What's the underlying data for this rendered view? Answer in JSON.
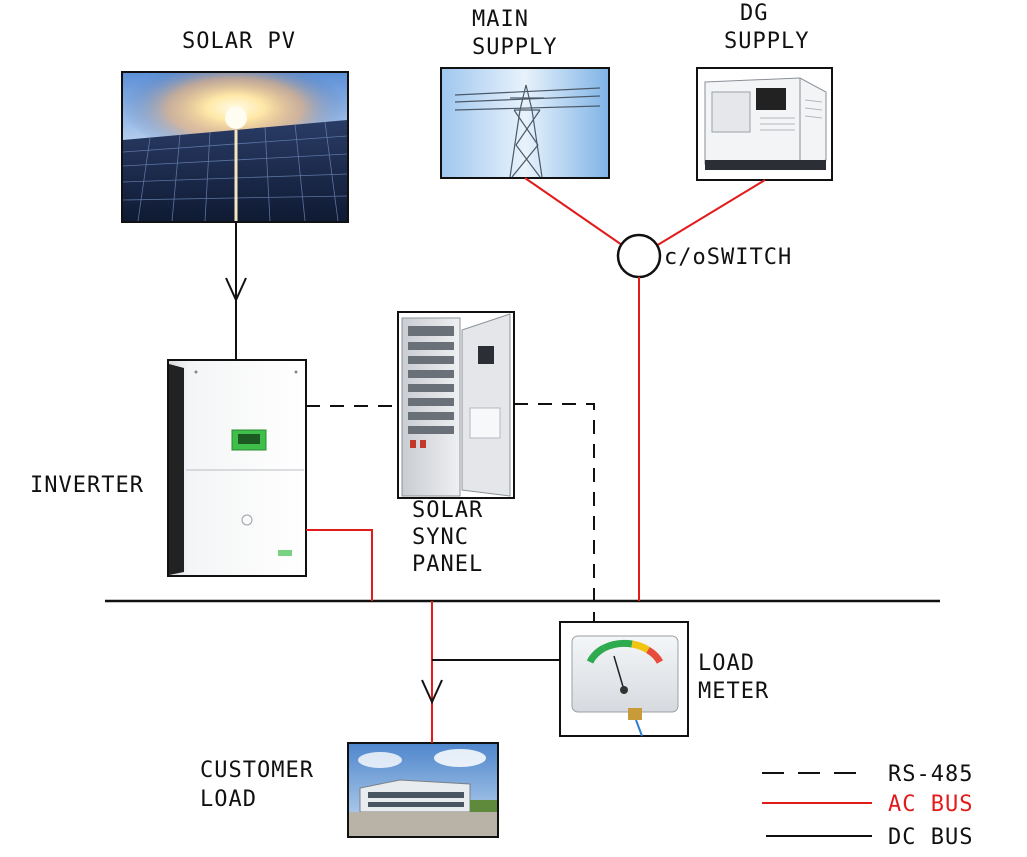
{
  "labels": {
    "solar_pv": "SOLAR PV",
    "main_supply_1": "MAIN",
    "main_supply_2": "SUPPLY",
    "dg_supply_1": "DG",
    "dg_supply_2": "SUPPLY",
    "co_switch": "c/oSWITCH",
    "inverter": "INVERTER",
    "sync_1": "SOLAR",
    "sync_2": "SYNC",
    "sync_3": "PANEL",
    "load_meter_1": "LOAD",
    "load_meter_2": "METER",
    "customer_1": "CUSTOMER",
    "customer_2": "LOAD"
  },
  "legend": {
    "rs485": "RS-485",
    "ac_bus": "AC BUS",
    "dc_bus": "DC BUS"
  },
  "colors": {
    "ac_bus": "#e21b1b",
    "dc_bus": "#111111",
    "rs485": "#111111",
    "inverter_display": "#3fbf4a"
  },
  "icons": {
    "solar_pv": "solar-panel-photo",
    "main_supply": "transmission-tower-photo",
    "dg_supply": "diesel-generator-photo",
    "inverter": "inverter-photo",
    "sync_panel": "electrical-cabinet-photo",
    "load_meter": "analog-meter-photo",
    "customer_load": "building-photo"
  }
}
